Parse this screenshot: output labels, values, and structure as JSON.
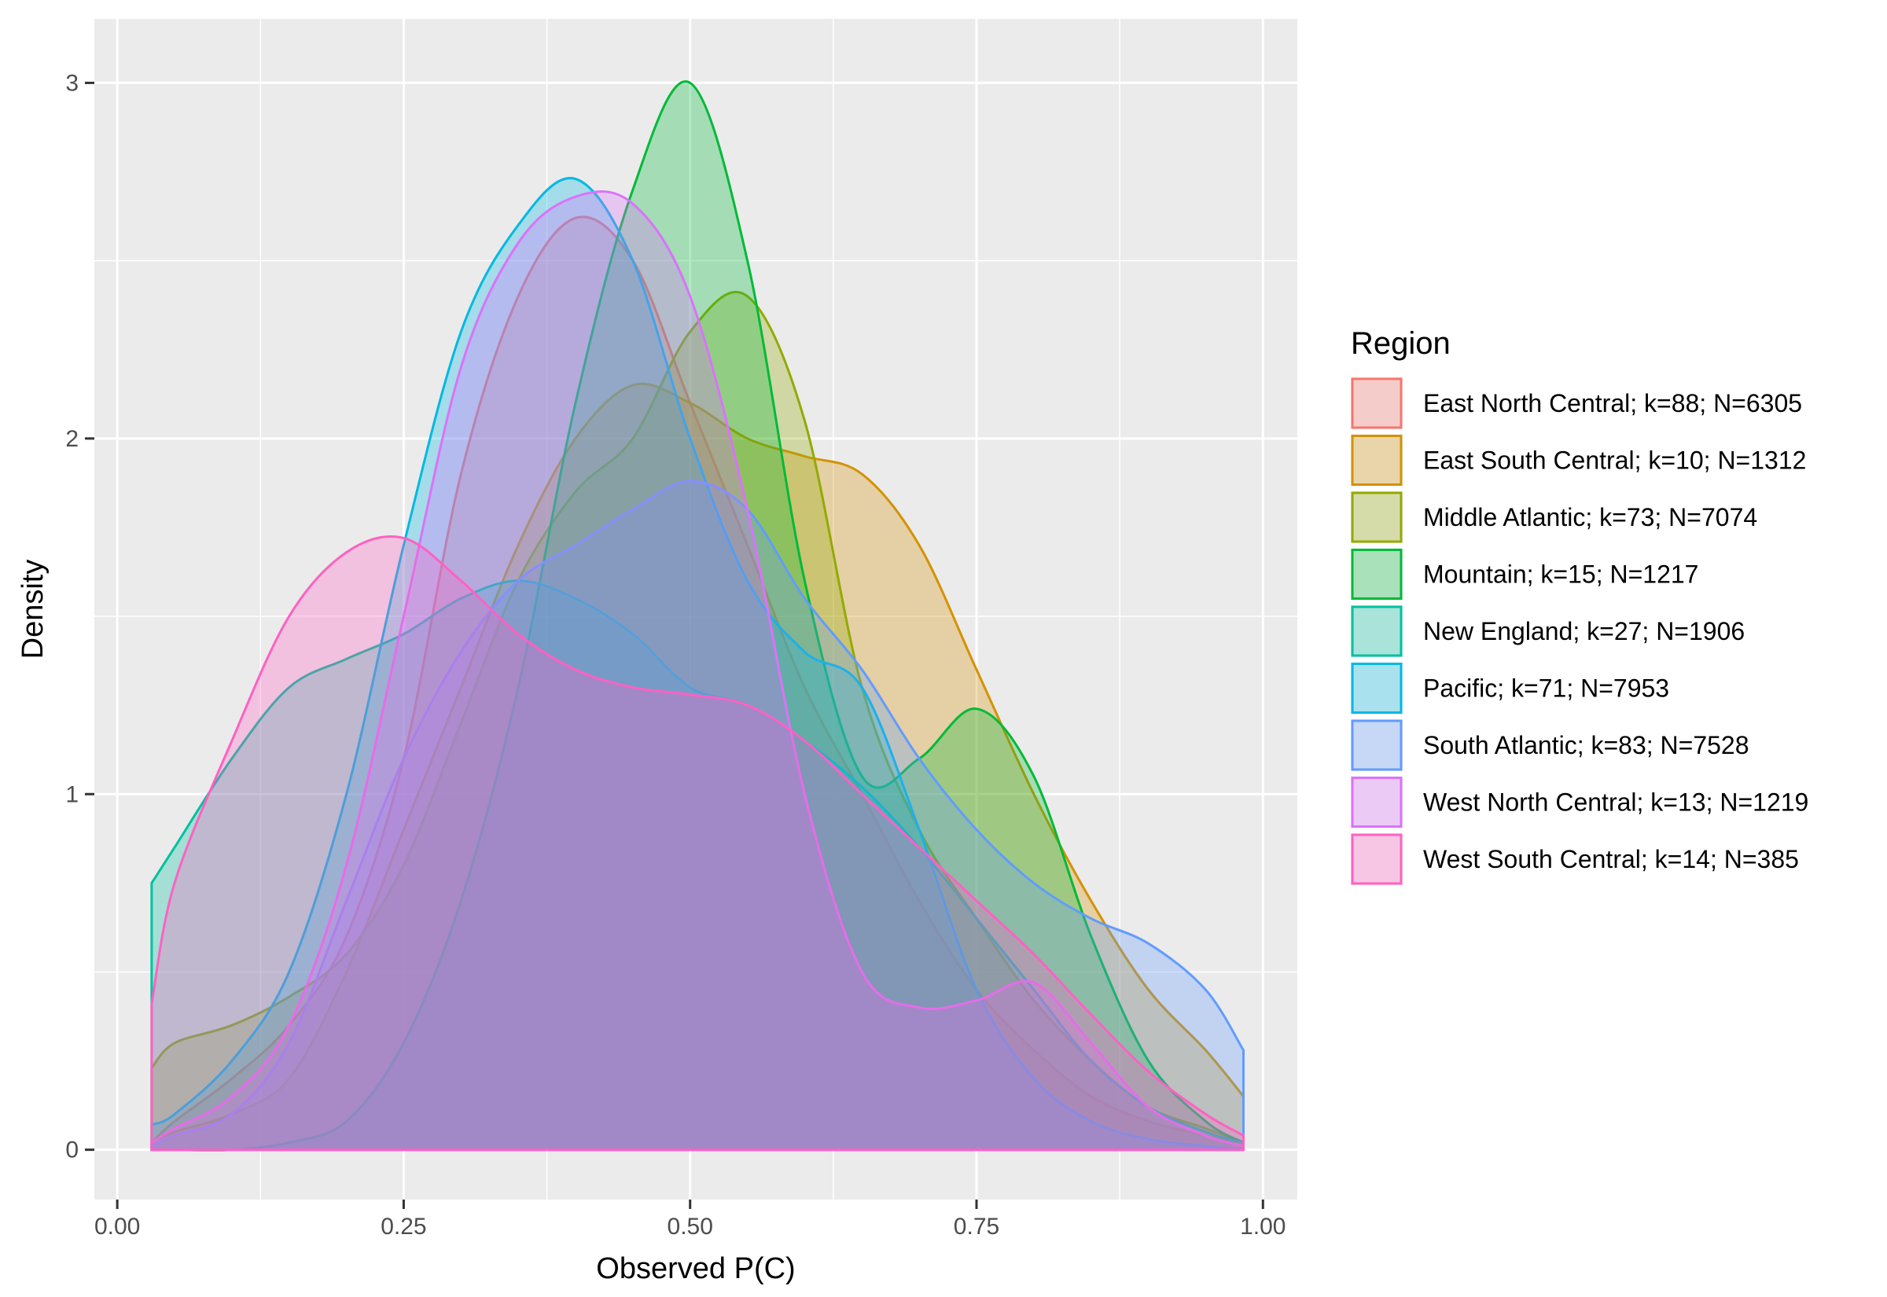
{
  "chart_data": {
    "type": "area",
    "subtype": "density",
    "xlabel": "Observed P(C)",
    "ylabel": "Density",
    "xlim": [
      -0.02,
      1.03
    ],
    "ylim": [
      -0.14,
      3.18
    ],
    "x_ticks": [
      0.0,
      0.25,
      0.5,
      0.75,
      1.0
    ],
    "x_tick_labels": [
      "0.00",
      "0.25",
      "0.50",
      "0.75",
      "1.00"
    ],
    "y_ticks": [
      0,
      1,
      2,
      3
    ],
    "y_tick_labels": [
      "0",
      "1",
      "2",
      "3"
    ],
    "grid": true,
    "legend_title": "Region",
    "legend_position": "right",
    "fill_opacity": 0.3,
    "x": [
      0.03,
      0.05,
      0.1,
      0.15,
      0.2,
      0.25,
      0.3,
      0.35,
      0.4,
      0.45,
      0.5,
      0.55,
      0.6,
      0.65,
      0.7,
      0.75,
      0.8,
      0.85,
      0.9,
      0.95,
      0.983
    ],
    "series": [
      {
        "name": "East North Central; k=88; N=6305",
        "color": "#F8766D",
        "values": [
          0.02,
          0.08,
          0.2,
          0.35,
          0.6,
          1.1,
          1.9,
          2.4,
          2.62,
          2.5,
          2.1,
          1.7,
          1.3,
          1.0,
          0.7,
          0.45,
          0.28,
          0.15,
          0.08,
          0.04,
          0.02
        ]
      },
      {
        "name": "East South Central; k=10; N=1312",
        "color": "#D39200",
        "values": [
          0.02,
          0.05,
          0.1,
          0.2,
          0.5,
          0.9,
          1.3,
          1.7,
          2.0,
          2.15,
          2.1,
          2.0,
          1.95,
          1.9,
          1.7,
          1.35,
          1.0,
          0.7,
          0.45,
          0.28,
          0.15
        ]
      },
      {
        "name": "Middle Atlantic; k=73; N=7074",
        "color": "#93AA00",
        "values": [
          0.23,
          0.3,
          0.35,
          0.43,
          0.55,
          0.8,
          1.2,
          1.6,
          1.85,
          2.0,
          2.3,
          2.4,
          2.05,
          1.3,
          0.9,
          0.65,
          0.42,
          0.25,
          0.12,
          0.06,
          0.02
        ]
      },
      {
        "name": "Mountain; k=15; N=1217",
        "color": "#00BA38",
        "values": [
          0.0,
          0.0,
          0.0,
          0.02,
          0.08,
          0.3,
          0.7,
          1.3,
          2.1,
          2.7,
          3.0,
          2.5,
          1.6,
          1.05,
          1.1,
          1.24,
          1.05,
          0.6,
          0.25,
          0.08,
          0.02
        ]
      },
      {
        "name": "New England; k=27; N=1906",
        "color": "#00C19F",
        "values": [
          0.75,
          0.85,
          1.1,
          1.3,
          1.38,
          1.45,
          1.55,
          1.6,
          1.55,
          1.45,
          1.3,
          1.25,
          1.15,
          1.02,
          0.85,
          0.65,
          0.45,
          0.25,
          0.12,
          0.05,
          0.02
        ]
      },
      {
        "name": "Pacific; k=71; N=7953",
        "color": "#00B9E3",
        "values": [
          0.07,
          0.1,
          0.25,
          0.5,
          1.0,
          1.7,
          2.3,
          2.6,
          2.73,
          2.5,
          2.0,
          1.6,
          1.4,
          1.3,
          0.9,
          0.45,
          0.2,
          0.08,
          0.03,
          0.01,
          0.0
        ]
      },
      {
        "name": "South Atlantic; k=83; N=7528",
        "color": "#619CFF",
        "values": [
          0.01,
          0.04,
          0.1,
          0.3,
          0.7,
          1.1,
          1.4,
          1.6,
          1.7,
          1.8,
          1.88,
          1.8,
          1.55,
          1.35,
          1.1,
          0.9,
          0.75,
          0.65,
          0.58,
          0.45,
          0.28
        ]
      },
      {
        "name": "West North Central; k=13; N=1219",
        "color": "#DB72FB",
        "values": [
          0.02,
          0.06,
          0.15,
          0.35,
          0.8,
          1.5,
          2.2,
          2.55,
          2.68,
          2.66,
          2.4,
          1.8,
          1.0,
          0.5,
          0.4,
          0.42,
          0.47,
          0.3,
          0.12,
          0.04,
          0.01
        ]
      },
      {
        "name": "West South Central; k=14; N=385",
        "color": "#FF61C3",
        "values": [
          0.41,
          0.75,
          1.15,
          1.5,
          1.68,
          1.72,
          1.6,
          1.45,
          1.35,
          1.3,
          1.28,
          1.25,
          1.15,
          1.0,
          0.85,
          0.7,
          0.55,
          0.38,
          0.22,
          0.1,
          0.04
        ]
      }
    ]
  }
}
